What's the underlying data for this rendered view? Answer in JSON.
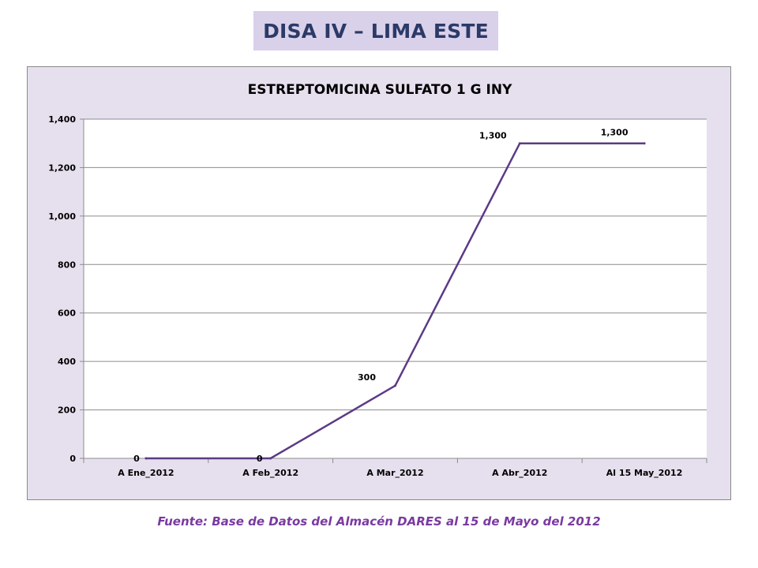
{
  "header": {
    "title": "DISA IV – LIMA ESTE"
  },
  "chart_data": {
    "type": "line",
    "title": "ESTREPTOMICINA SULFATO 1 G INY",
    "categories": [
      "A Ene_2012",
      "A Feb_2012",
      "A Mar_2012",
      "A Abr_2012",
      "Al 15 May_2012"
    ],
    "series": [
      {
        "values": [
          0,
          0,
          300,
          1300,
          1300
        ]
      }
    ],
    "data_labels": [
      "0",
      "0",
      "300",
      "1,300",
      "1,300"
    ],
    "yticks": [
      0,
      200,
      400,
      600,
      800,
      1000,
      1200,
      1400
    ],
    "ytick_labels": [
      "0",
      "200",
      "400",
      "600",
      "800",
      "1,000",
      "1,200",
      "1,400"
    ],
    "ylim": [
      0,
      1400
    ],
    "grid": true,
    "legend": "none",
    "line_color": "#5c3a86"
  },
  "footer": {
    "source": "Fuente: Base de Datos del Almacén DARES al 15 de Mayo del 2012"
  }
}
